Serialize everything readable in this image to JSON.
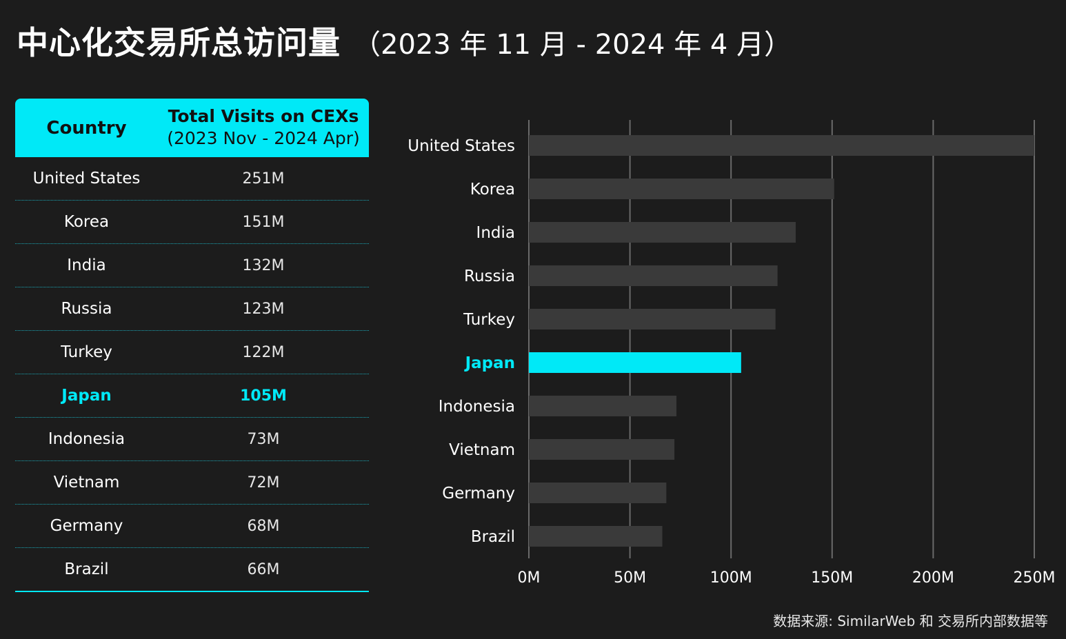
{
  "title": "中心化交易所总访问量",
  "title_period": "（2023 年 11 月 - 2024 年 4 月）",
  "table": {
    "header_country": "Country",
    "header_visits_line1": "Total Visits on CEXs",
    "header_visits_line2": "(2023 Nov - 2024 Apr)",
    "rows": [
      {
        "country": "United States",
        "visits": "251M"
      },
      {
        "country": "Korea",
        "visits": "151M"
      },
      {
        "country": "India",
        "visits": "132M"
      },
      {
        "country": "Russia",
        "visits": "123M"
      },
      {
        "country": "Turkey",
        "visits": "122M"
      },
      {
        "country": "Japan",
        "visits": "105M"
      },
      {
        "country": "Indonesia",
        "visits": "73M"
      },
      {
        "country": "Vietnam",
        "visits": "72M"
      },
      {
        "country": "Germany",
        "visits": "68M"
      },
      {
        "country": "Brazil",
        "visits": "66M"
      }
    ],
    "highlighted_country": "Japan"
  },
  "chart_data": {
    "type": "bar",
    "orientation": "horizontal",
    "categories": [
      "United States",
      "Korea",
      "India",
      "Russia",
      "Turkey",
      "Japan",
      "Indonesia",
      "Vietnam",
      "Germany",
      "Brazil"
    ],
    "values": [
      251,
      151,
      132,
      123,
      122,
      105,
      73,
      72,
      68,
      66
    ],
    "unit": "M",
    "xlim": [
      0,
      250
    ],
    "xticks": [
      "0M",
      "50M",
      "100M",
      "150M",
      "200M",
      "250M"
    ],
    "grid": true,
    "highlight": "Japan",
    "bar_color": "#3a3a3a",
    "highlight_color": "#00e9f7"
  },
  "source": "数据来源: SimilarWeb 和 交易所内部数据等"
}
